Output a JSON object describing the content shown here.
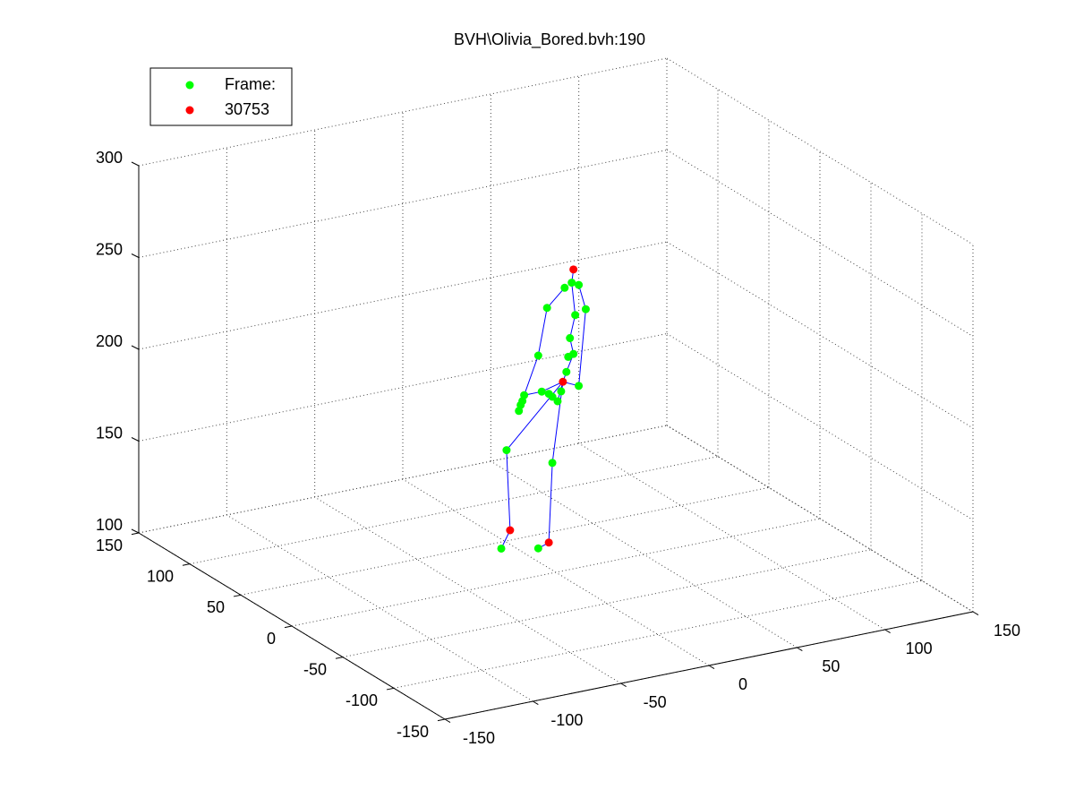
{
  "chart_data": {
    "type": "scatter3d",
    "title": "BVH\\Olivia_Bored.bvh:190",
    "series": [
      {
        "name": "Frame:",
        "color": "#00ff00",
        "x": [
          5,
          9,
          13,
          -5,
          11,
          17,
          8,
          -10,
          7,
          10,
          6,
          13,
          -18,
          -19,
          -20,
          -21,
          -8,
          -4,
          -2,
          1,
          3,
          -28,
          -2,
          -31,
          -10
        ],
        "y": [
          0,
          0,
          0,
          0,
          0,
          0,
          0,
          0,
          0,
          0,
          0,
          0,
          0,
          0,
          0,
          0,
          0,
          0,
          0,
          0,
          0,
          0,
          0,
          0,
          0
        ],
        "z": [
          254,
          256,
          254,
          245,
          238,
          240,
          226,
          220,
          216,
          217,
          208,
          199,
          200,
          197,
          195,
          192,
          200,
          198,
          196,
          193,
          198,
          172,
          160,
          119,
          115
        ]
      },
      {
        "name": "30753",
        "color": "#ff0000",
        "x": [
          10,
          4,
          -26,
          -4
        ],
        "y": [
          0,
          0,
          0,
          0
        ],
        "z": [
          263,
          203,
          128,
          117
        ]
      }
    ],
    "skeleton": {
      "color": "#0000ff",
      "x": [
        -31,
        -26,
        -28,
        4,
        6,
        10,
        8,
        11,
        9,
        10,
        null,
        4,
        -2,
        -4,
        -10,
        null,
        5,
        -5,
        -10,
        -18,
        -20,
        null,
        13,
        17,
        13,
        4,
        -8,
        -18,
        null,
        4,
        1
      ],
      "y": [
        0,
        0,
        0,
        0,
        0,
        0,
        0,
        0,
        0,
        0,
        null,
        0,
        0,
        0,
        0,
        null,
        0,
        0,
        0,
        0,
        0,
        null,
        0,
        0,
        0,
        0,
        0,
        0,
        null,
        0,
        0
      ],
      "z": [
        119,
        128,
        172,
        203,
        208,
        217,
        226,
        238,
        256,
        263,
        null,
        203,
        160,
        117,
        115,
        null,
        254,
        245,
        220,
        200,
        195,
        null,
        254,
        240,
        199,
        203,
        200,
        200,
        null,
        203,
        193
      ]
    },
    "xlim": [
      -150,
      150
    ],
    "ylim": [
      -150,
      150
    ],
    "zlim": [
      100,
      300
    ],
    "xticks": [
      -150,
      -100,
      -50,
      0,
      50,
      100,
      150
    ],
    "yticks": [
      -150,
      -100,
      -50,
      0,
      50,
      100,
      150
    ],
    "zticks": [
      100,
      150,
      200,
      250,
      300
    ],
    "grid": true,
    "legend": "upper left"
  }
}
